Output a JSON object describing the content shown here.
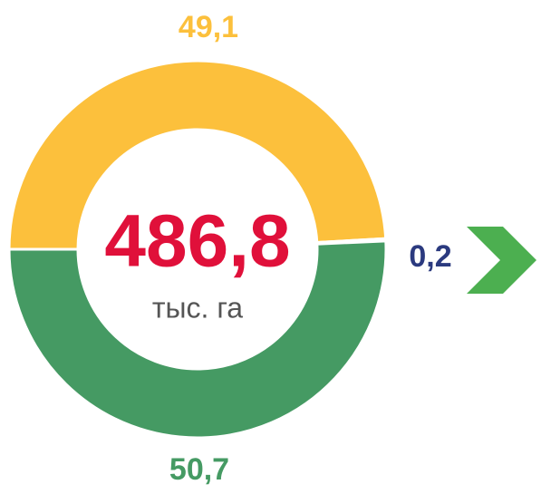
{
  "chart_data": {
    "type": "donut",
    "categories": [
      null,
      null,
      null
    ],
    "values": [
      49.1,
      0.2,
      50.7
    ],
    "value_labels": [
      "49,1",
      "0,2",
      "50,7"
    ],
    "colors": [
      "#fcc03c",
      "#4a9bd6",
      "#459a63"
    ],
    "label_colors": [
      "#fcc03c",
      "#2b3a7f",
      "#459a63"
    ],
    "total": {
      "value": 486.8,
      "label": "486,8"
    },
    "unit": "тыс. га"
  }
}
